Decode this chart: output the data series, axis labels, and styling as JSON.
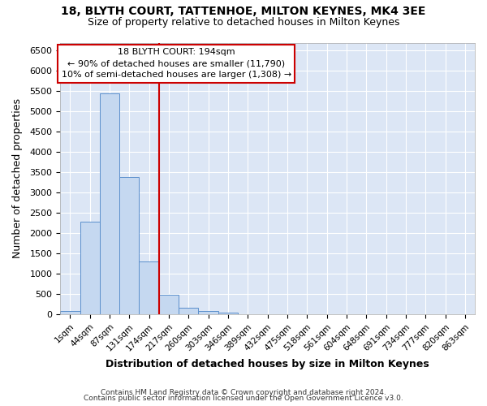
{
  "title1": "18, BLYTH COURT, TATTENHOE, MILTON KEYNES, MK4 3EE",
  "title2": "Size of property relative to detached houses in Milton Keynes",
  "xlabel": "Distribution of detached houses by size in Milton Keynes",
  "ylabel": "Number of detached properties",
  "footer1": "Contains HM Land Registry data © Crown copyright and database right 2024.",
  "footer2": "Contains public sector information licensed under the Open Government Licence v3.0.",
  "bar_labels": [
    "1sqm",
    "44sqm",
    "87sqm",
    "131sqm",
    "174sqm",
    "217sqm",
    "260sqm",
    "303sqm",
    "346sqm",
    "389sqm",
    "432sqm",
    "475sqm",
    "518sqm",
    "561sqm",
    "604sqm",
    "648sqm",
    "691sqm",
    "734sqm",
    "777sqm",
    "820sqm",
    "863sqm"
  ],
  "bar_values": [
    75,
    2280,
    5440,
    3390,
    1310,
    480,
    160,
    80,
    40,
    0,
    0,
    0,
    0,
    0,
    0,
    0,
    0,
    0,
    0,
    0,
    0
  ],
  "bar_color": "#c5d8f0",
  "bar_edgecolor": "#5b8fcc",
  "vline_color": "#cc0000",
  "annotation_line1": "18 BLYTH COURT: 194sqm",
  "annotation_line2": "← 90% of detached houses are smaller (11,790)",
  "annotation_line3": "10% of semi-detached houses are larger (1,308) →",
  "annotation_box_color": "#ffffff",
  "annotation_box_edgecolor": "#cc0000",
  "ylim": [
    0,
    6700
  ],
  "background_color": "#dce6f5",
  "grid_color": "#ffffff",
  "fig_bg": "#ffffff"
}
